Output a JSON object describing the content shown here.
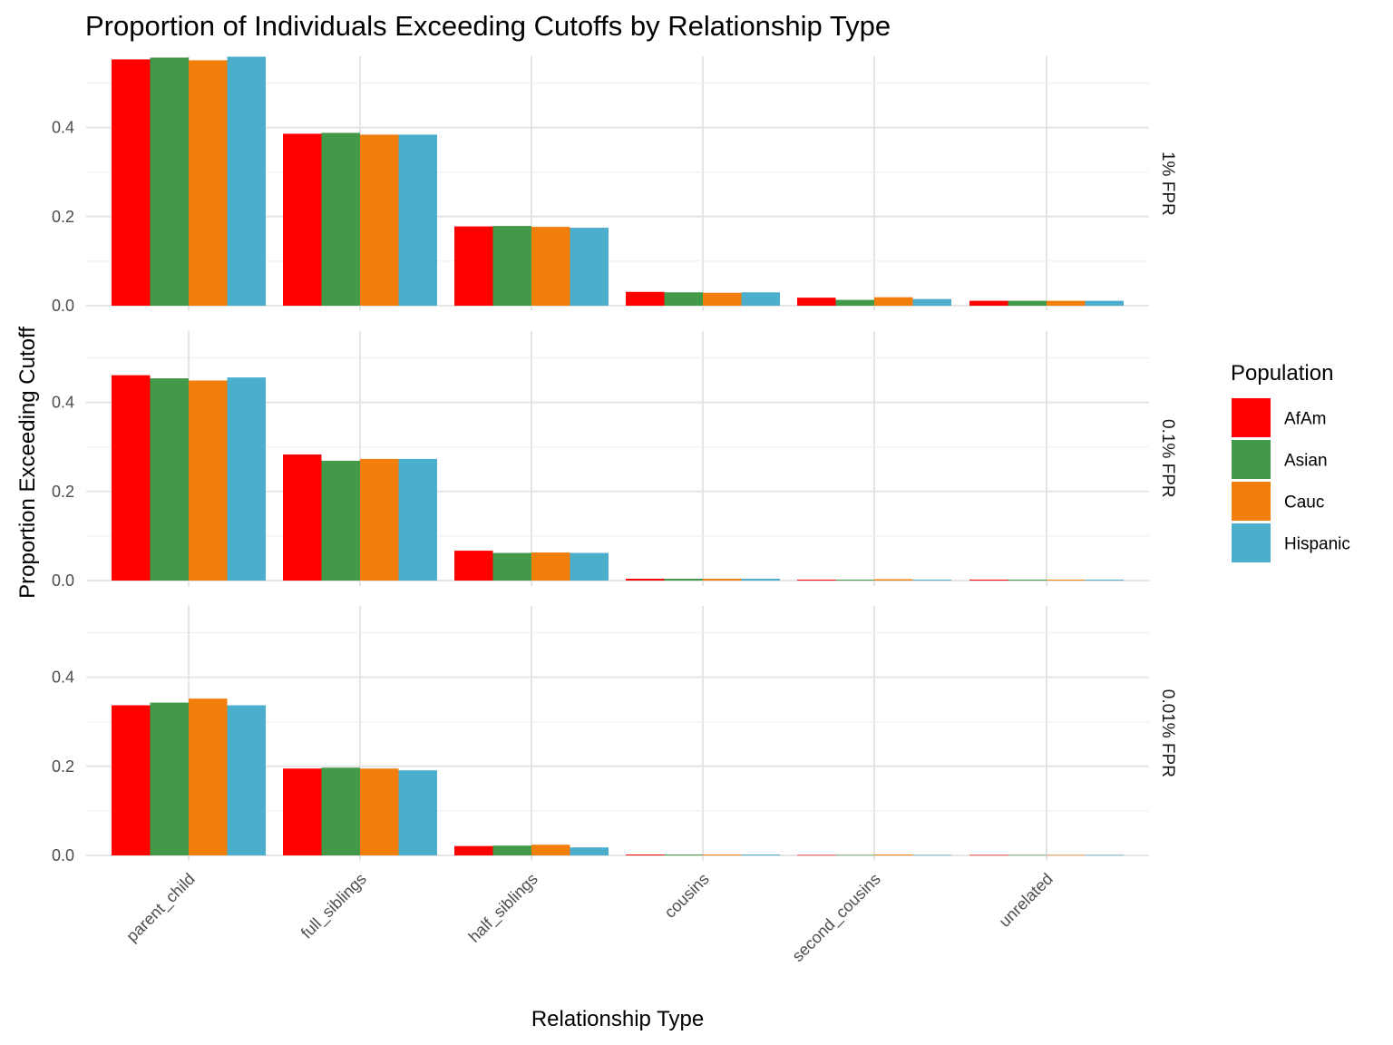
{
  "chart_data": {
    "type": "bar",
    "title": "Proportion of Individuals Exceeding Cutoffs by Relationship Type",
    "xlabel": "Relationship Type",
    "ylabel": "Proportion Exceeding Cutoff",
    "ylim": [
      0,
      0.56
    ],
    "yticks": [
      "0.0",
      "0.2",
      "0.4"
    ],
    "categories": [
      "parent_child",
      "full_siblings",
      "half_siblings",
      "cousins",
      "second_cousins",
      "unrelated"
    ],
    "legend": {
      "title": "Population",
      "placement": "right",
      "entries": [
        {
          "name": "AfAm",
          "color": "#ff0000"
        },
        {
          "name": "Asian",
          "color": "#43994a"
        },
        {
          "name": "Cauc",
          "color": "#f27f0c"
        },
        {
          "name": "Hispanic",
          "color": "#4caecd"
        }
      ]
    },
    "panels": [
      {
        "label": "1% FPR",
        "series": [
          {
            "name": "AfAm",
            "values": [
              0.553,
              0.386,
              0.178,
              0.031,
              0.018,
              0.011
            ]
          },
          {
            "name": "Asian",
            "values": [
              0.557,
              0.388,
              0.179,
              0.03,
              0.013,
              0.011
            ]
          },
          {
            "name": "Cauc",
            "values": [
              0.551,
              0.384,
              0.177,
              0.029,
              0.019,
              0.011
            ]
          },
          {
            "name": "Hispanic",
            "values": [
              0.559,
              0.384,
              0.175,
              0.03,
              0.015,
              0.011
            ]
          }
        ]
      },
      {
        "label": "0.1% FPR",
        "series": [
          {
            "name": "AfAm",
            "values": [
              0.461,
              0.283,
              0.067,
              0.004,
              0.002,
              0.002
            ]
          },
          {
            "name": "Asian",
            "values": [
              0.454,
              0.269,
              0.062,
              0.004,
              0.002,
              0.002
            ]
          },
          {
            "name": "Cauc",
            "values": [
              0.449,
              0.273,
              0.063,
              0.004,
              0.003,
              0.002
            ]
          },
          {
            "name": "Hispanic",
            "values": [
              0.456,
              0.273,
              0.062,
              0.004,
              0.002,
              0.002
            ]
          }
        ]
      },
      {
        "label": "0.01% FPR",
        "series": [
          {
            "name": "AfAm",
            "values": [
              0.337,
              0.195,
              0.021,
              0.002,
              0.001,
              0.001
            ]
          },
          {
            "name": "Asian",
            "values": [
              0.343,
              0.197,
              0.022,
              0.002,
              0.001,
              0.001
            ]
          },
          {
            "name": "Cauc",
            "values": [
              0.352,
              0.195,
              0.024,
              0.002,
              0.002,
              0.001
            ]
          },
          {
            "name": "Hispanic",
            "values": [
              0.337,
              0.191,
              0.018,
              0.002,
              0.001,
              0.001
            ]
          }
        ]
      }
    ]
  }
}
